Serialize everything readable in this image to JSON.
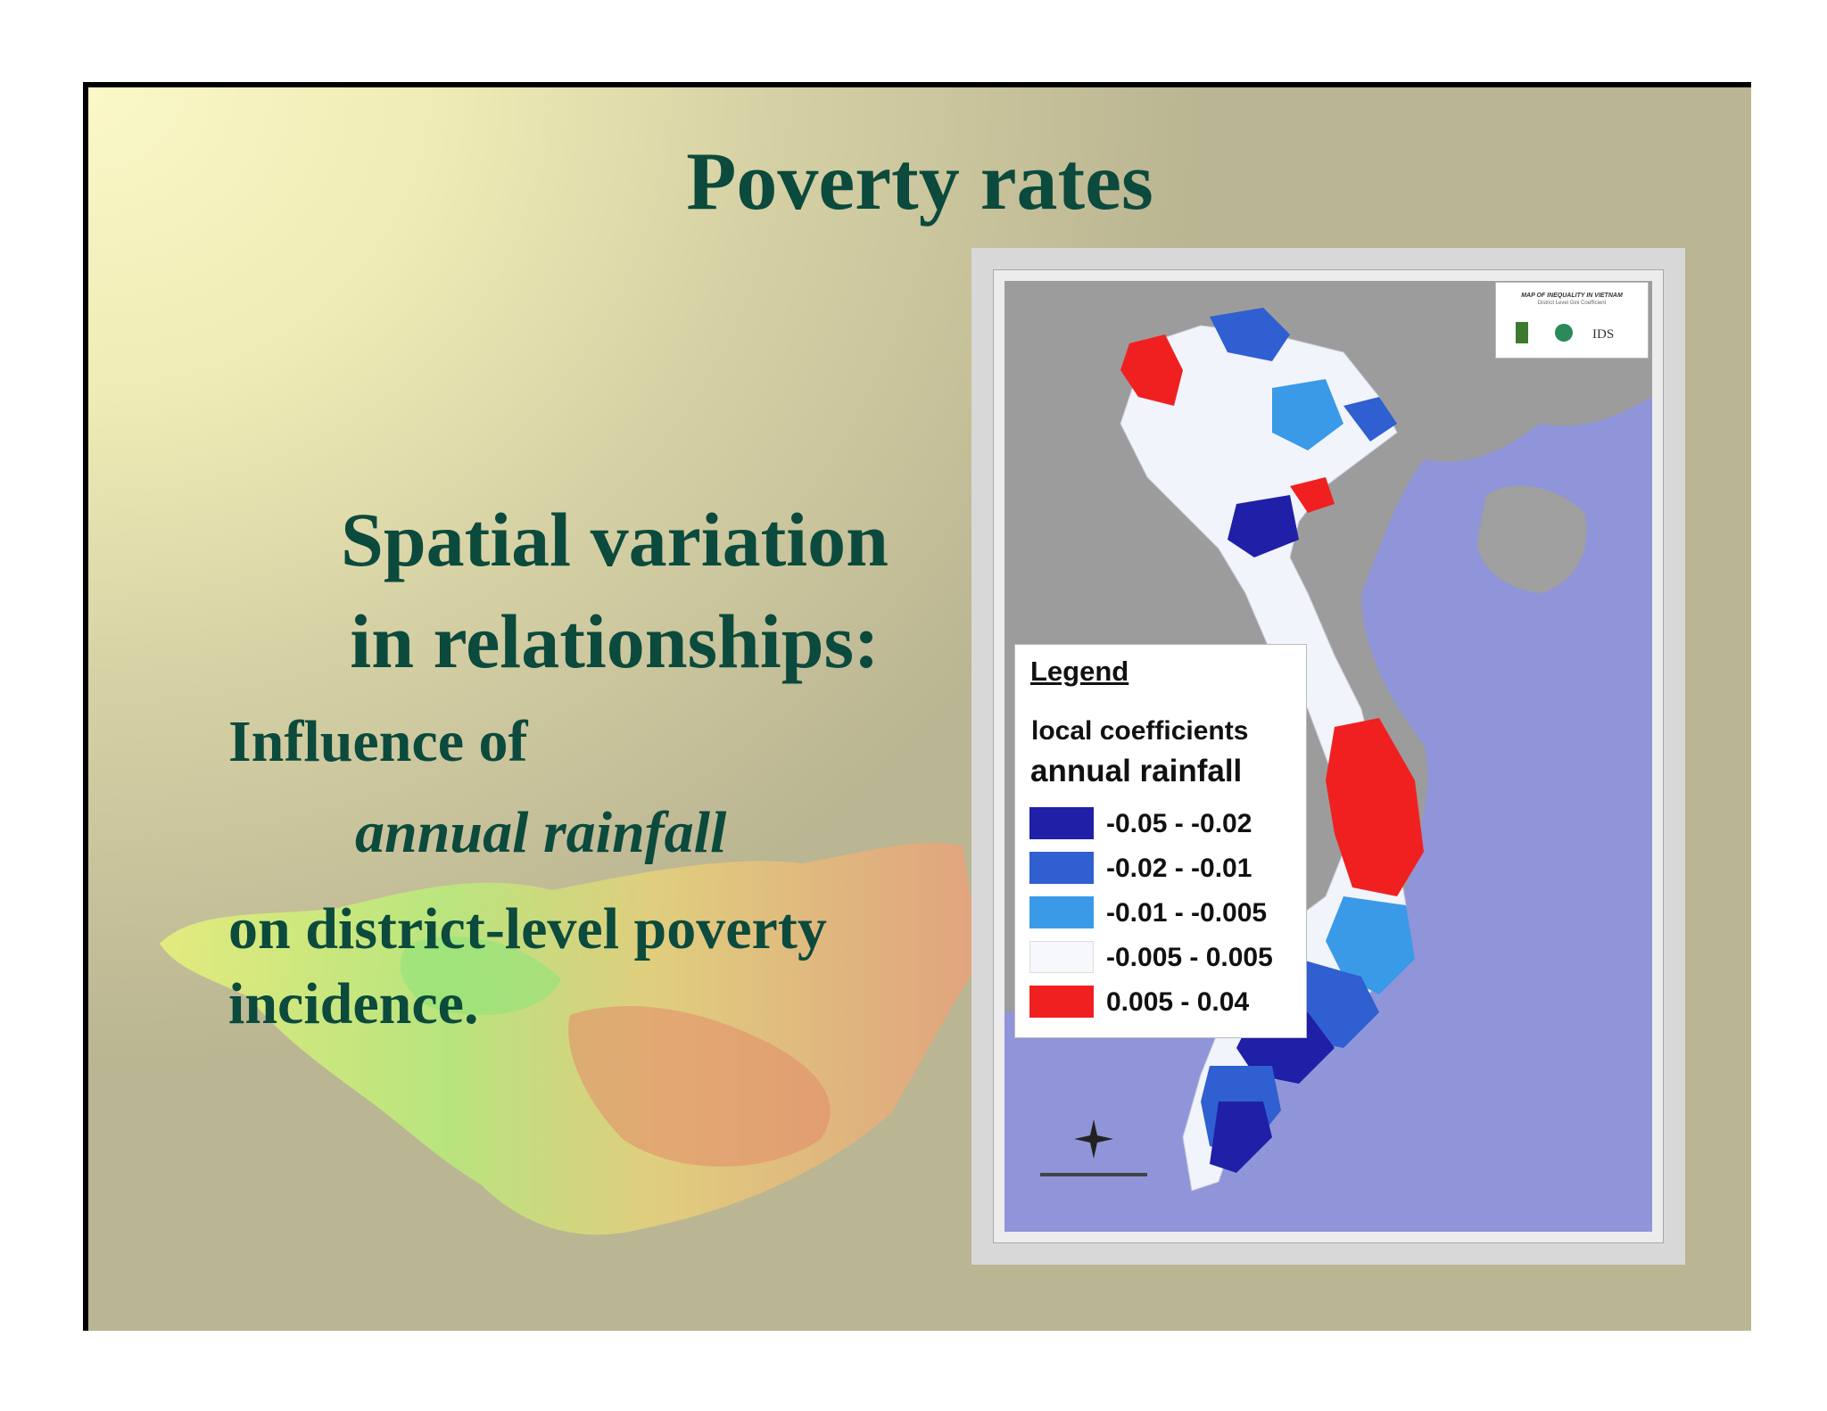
{
  "slide": {
    "title": "Poverty rates",
    "heading_lines": [
      "Spatial variation",
      "in relationships:"
    ],
    "body_line1": "Influence of",
    "body_italic": "annual rainfall",
    "body_line3": "on district-level poverty",
    "body_line4": "incidence."
  },
  "map": {
    "logo_title": "MAP OF INEQUALITY IN VIETNAM",
    "logo_subtitle": "District Level Gini Coefficient",
    "logo_ids": "IDS",
    "legend": {
      "title": "Legend",
      "subtitle": "local coefficients",
      "variable": "annual rainfall",
      "items": [
        {
          "label": "-0.05 - -0.02",
          "color": "#1f1fa8"
        },
        {
          "label": "-0.02 - -0.01",
          "color": "#2f5fd0"
        },
        {
          "label": "-0.01 - -0.005",
          "color": "#3a9ae8"
        },
        {
          "label": "-0.005 - 0.005",
          "color": "#f6f8fc"
        },
        {
          "label": "0.005 - 0.04",
          "color": "#f12020"
        }
      ]
    }
  }
}
